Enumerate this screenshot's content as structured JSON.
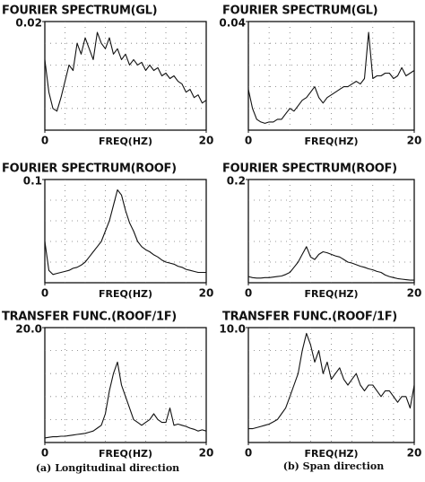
{
  "chart_data": [
    {
      "type": "line",
      "title": "FOURIER SPECTRUM(GL)",
      "x_label": "FREQ(HZ)",
      "xlim": [
        0,
        20
      ],
      "xticks": [
        0,
        20
      ],
      "ylim": [
        0,
        0.02
      ],
      "yticks": [
        0.02
      ],
      "color": "#111111",
      "x": [
        0,
        0.5,
        1,
        1.5,
        2,
        2.5,
        3,
        3.5,
        4,
        4.5,
        5,
        5.5,
        6,
        6.5,
        7,
        7.5,
        8,
        8.5,
        9,
        9.5,
        10,
        10.5,
        11,
        11.5,
        12,
        12.5,
        13,
        13.5,
        14,
        14.5,
        15,
        15.5,
        16,
        16.5,
        17,
        17.5,
        18,
        18.5,
        19,
        19.5,
        20
      ],
      "values": [
        0.013,
        0.007,
        0.004,
        0.0035,
        0.006,
        0.009,
        0.012,
        0.011,
        0.016,
        0.014,
        0.017,
        0.015,
        0.013,
        0.018,
        0.016,
        0.015,
        0.017,
        0.014,
        0.015,
        0.013,
        0.014,
        0.012,
        0.013,
        0.012,
        0.0125,
        0.011,
        0.012,
        0.011,
        0.0115,
        0.01,
        0.0105,
        0.0095,
        0.01,
        0.009,
        0.0085,
        0.007,
        0.0075,
        0.006,
        0.0065,
        0.005,
        0.0055
      ]
    },
    {
      "type": "line",
      "title": "FOURIER SPECTRUM(GL)",
      "x_label": "FREQ(HZ)",
      "xlim": [
        0,
        20
      ],
      "xticks": [
        0,
        20
      ],
      "ylim": [
        0,
        0.04
      ],
      "yticks": [
        0.04
      ],
      "color": "#111111",
      "x": [
        0,
        0.5,
        1,
        1.5,
        2,
        2.5,
        3,
        3.5,
        4,
        4.5,
        5,
        5.5,
        6,
        6.5,
        7,
        7.5,
        8,
        8.5,
        9,
        9.5,
        10,
        10.5,
        11,
        11.5,
        12,
        12.5,
        13,
        13.5,
        14,
        14.5,
        15,
        15.5,
        16,
        16.5,
        17,
        17.5,
        18,
        18.5,
        19,
        19.5,
        20
      ],
      "values": [
        0.015,
        0.008,
        0.004,
        0.003,
        0.0025,
        0.003,
        0.003,
        0.004,
        0.004,
        0.006,
        0.008,
        0.007,
        0.009,
        0.011,
        0.012,
        0.014,
        0.016,
        0.012,
        0.01,
        0.012,
        0.013,
        0.014,
        0.015,
        0.016,
        0.016,
        0.017,
        0.018,
        0.017,
        0.019,
        0.036,
        0.019,
        0.02,
        0.02,
        0.021,
        0.021,
        0.019,
        0.02,
        0.023,
        0.02,
        0.021,
        0.022
      ]
    },
    {
      "type": "line",
      "title": "FOURIER SPECTRUM(ROOF)",
      "x_label": "FREQ(HZ)",
      "xlim": [
        0,
        20
      ],
      "xticks": [
        0,
        20
      ],
      "ylim": [
        0,
        0.1
      ],
      "yticks": [
        0.1
      ],
      "color": "#111111",
      "x": [
        0,
        0.5,
        1,
        1.5,
        2,
        2.5,
        3,
        3.5,
        4,
        4.5,
        5,
        5.5,
        6,
        6.5,
        7,
        7.5,
        8,
        8.5,
        9,
        9.5,
        10,
        10.5,
        11,
        11.5,
        12,
        12.5,
        13,
        13.5,
        14,
        14.5,
        15,
        15.5,
        16,
        16.5,
        17,
        17.5,
        18,
        18.5,
        19,
        19.5,
        20
      ],
      "values": [
        0.04,
        0.012,
        0.008,
        0.009,
        0.01,
        0.011,
        0.012,
        0.014,
        0.015,
        0.017,
        0.02,
        0.025,
        0.03,
        0.035,
        0.04,
        0.05,
        0.06,
        0.075,
        0.09,
        0.085,
        0.07,
        0.058,
        0.05,
        0.04,
        0.035,
        0.032,
        0.03,
        0.027,
        0.025,
        0.022,
        0.02,
        0.019,
        0.018,
        0.016,
        0.015,
        0.013,
        0.012,
        0.011,
        0.01,
        0.01,
        0.01
      ]
    },
    {
      "type": "line",
      "title": "FOURIER SPECTRUM(ROOF)",
      "x_label": "FREQ(HZ)",
      "xlim": [
        0,
        20
      ],
      "xticks": [
        0,
        20
      ],
      "ylim": [
        0,
        0.2
      ],
      "yticks": [
        0.2
      ],
      "color": "#111111",
      "x": [
        0,
        0.5,
        1,
        1.5,
        2,
        2.5,
        3,
        3.5,
        4,
        4.5,
        5,
        5.5,
        6,
        6.5,
        7,
        7.5,
        8,
        8.5,
        9,
        9.5,
        10,
        10.5,
        11,
        11.5,
        12,
        12.5,
        13,
        13.5,
        14,
        14.5,
        15,
        15.5,
        16,
        16.5,
        17,
        17.5,
        18,
        18.5,
        19,
        19.5,
        20
      ],
      "values": [
        0.012,
        0.01,
        0.009,
        0.009,
        0.01,
        0.01,
        0.011,
        0.012,
        0.013,
        0.016,
        0.02,
        0.03,
        0.04,
        0.055,
        0.07,
        0.05,
        0.045,
        0.055,
        0.06,
        0.058,
        0.055,
        0.052,
        0.05,
        0.045,
        0.04,
        0.038,
        0.035,
        0.032,
        0.03,
        0.027,
        0.025,
        0.022,
        0.02,
        0.015,
        0.012,
        0.01,
        0.008,
        0.007,
        0.006,
        0.005,
        0.005
      ]
    },
    {
      "type": "line",
      "title": "TRANSFER FUNC.(ROOF/1F)",
      "x_label": "FREQ(HZ)",
      "xlim": [
        0,
        20
      ],
      "xticks": [
        0,
        20
      ],
      "ylim": [
        0,
        20
      ],
      "yticks": [
        {
          "value": 20,
          "label": "20.0"
        }
      ],
      "color": "#111111",
      "x": [
        0,
        0.5,
        1,
        1.5,
        2,
        2.5,
        3,
        3.5,
        4,
        4.5,
        5,
        5.5,
        6,
        6.5,
        7,
        7.5,
        8,
        8.5,
        9,
        9.5,
        10,
        10.5,
        11,
        11.5,
        12,
        12.5,
        13,
        13.5,
        14,
        14.5,
        15,
        15.5,
        16,
        16.5,
        17,
        17.5,
        18,
        18.5,
        19,
        19.5,
        20
      ],
      "values": [
        0.8,
        0.9,
        1.0,
        1.0,
        1.1,
        1.1,
        1.2,
        1.3,
        1.4,
        1.5,
        1.6,
        1.8,
        2.0,
        2.5,
        3.0,
        5.0,
        9.0,
        12.0,
        14.0,
        10.0,
        8.0,
        6.0,
        4.0,
        3.5,
        3.0,
        3.5,
        4.0,
        5.0,
        4.0,
        3.5,
        3.5,
        6.0,
        3.0,
        3.2,
        3.0,
        2.8,
        2.5,
        2.3,
        2.0,
        2.2,
        2.0
      ]
    },
    {
      "type": "line",
      "title": "TRANSFER FUNC.(ROOF/1F)",
      "x_label": "FREQ(HZ)",
      "xlim": [
        0,
        20
      ],
      "xticks": [
        0,
        20
      ],
      "ylim": [
        0,
        10
      ],
      "yticks": [
        {
          "value": 10,
          "label": "10.0"
        }
      ],
      "color": "#111111",
      "x": [
        0,
        0.5,
        1,
        1.5,
        2,
        2.5,
        3,
        3.5,
        4,
        4.5,
        5,
        5.5,
        6,
        6.5,
        7,
        7.5,
        8,
        8.5,
        9,
        9.5,
        10,
        10.5,
        11,
        11.5,
        12,
        12.5,
        13,
        13.5,
        14,
        14.5,
        15,
        15.5,
        16,
        16.5,
        17,
        17.5,
        18,
        18.5,
        19,
        19.5,
        20
      ],
      "values": [
        1.2,
        1.2,
        1.3,
        1.4,
        1.5,
        1.6,
        1.8,
        2.0,
        2.5,
        3.0,
        4.0,
        5.0,
        6.0,
        8.0,
        9.5,
        8.5,
        7.0,
        8.0,
        6.0,
        7.0,
        5.5,
        6.0,
        6.5,
        5.5,
        5.0,
        5.5,
        6.0,
        5.0,
        4.5,
        5.0,
        5.0,
        4.5,
        4.0,
        4.5,
        4.5,
        4.0,
        3.5,
        4.0,
        4.0,
        3.0,
        5.0
      ]
    }
  ],
  "captions": [
    "(a) Longitudinal direction",
    "(b) Span direction"
  ]
}
